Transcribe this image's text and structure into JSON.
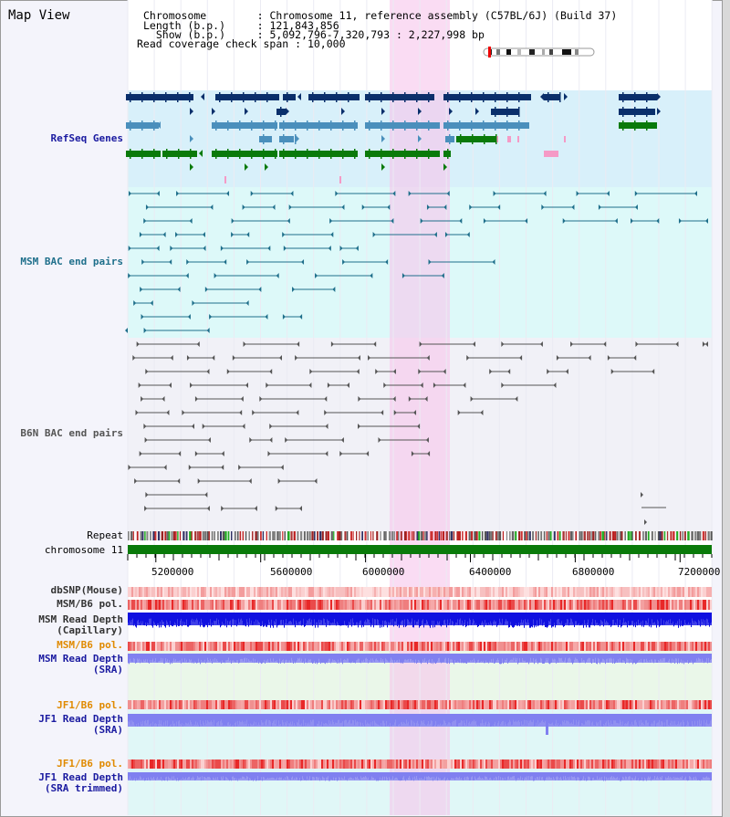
{
  "view_title": "Map View",
  "header": {
    "rows": [
      {
        "key": "Chromosome        ",
        "value": "Chromosome 11, reference assembly (C57BL/6J) (Build 37)"
      },
      {
        "key": "Length (b.p.)     ",
        "value": "121,843,856"
      },
      {
        "key": "  Show (b.p.)     ",
        "value": "5,092,796-7,320,793 : 2,227,998 bp"
      },
      {
        "key": "Read coverage check span",
        "value": "10,000"
      }
    ]
  },
  "tracks": {
    "refseq": "RefSeq Genes",
    "msm_bac": "MSM BAC end pairs",
    "b6n_bac": "B6N BAC end pairs",
    "repeat": "Repeat",
    "chromosome": "chromosome 11",
    "dbsnp": "dbSNP(Mouse)",
    "msm_b6_pol": "MSM/B6 pol.",
    "msm_depth_cap": "MSM Read Depth\n(Capillary)",
    "msm_b6_pol2": "MSM/B6 pol.",
    "msm_depth_sra": "MSM Read Depth\n(SRA)",
    "jf1_b6_pol": "JF1/B6 pol.",
    "jf1_depth_sra": "JF1 Read Depth\n(SRA)",
    "jf1_b6_pol2": "JF1/B6 pol.",
    "jf1_depth_trim": "JF1 Read Depth\n(SRA trimmed)"
  },
  "axis": {
    "start_bp": 5092796,
    "end_bp": 7320793,
    "ticks": [
      "5200000",
      "5600000",
      "6000000",
      "6400000",
      "6800000",
      "7200000"
    ],
    "tick_values": [
      5200000,
      5600000,
      6000000,
      6400000,
      6800000,
      7200000
    ]
  },
  "highlight_bp": [
    6095000,
    6325000
  ],
  "colors": {
    "refseq_dark": "#0a2f6b",
    "refseq_mid": "#4a8fbc",
    "refseq_green": "#0a7a0a",
    "msm_bac": "#1f6f8b",
    "b6n_bac": "#555555",
    "chromosome": "#0a7a0a",
    "read_depth_dark": "#1010e0",
    "read_depth_light": "#8080f0",
    "highlight": "#f7c6ec"
  }
}
